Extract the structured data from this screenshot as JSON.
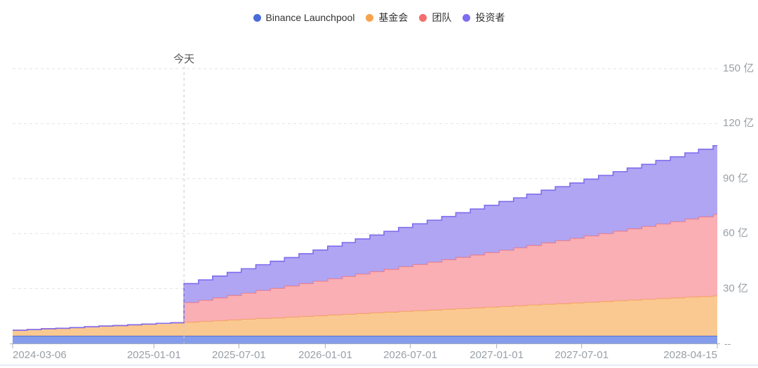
{
  "legend": {
    "items": [
      {
        "label": "Binance Launchpool",
        "color": "#4a6cd9"
      },
      {
        "label": "基金会",
        "color": "#f7a34e"
      },
      {
        "label": "团队",
        "color": "#f56d6d"
      },
      {
        "label": "投资者",
        "color": "#7d6ef0"
      }
    ]
  },
  "today": {
    "label": "今天",
    "date": "2025-03-06"
  },
  "y_axis": {
    "unit": "亿",
    "ticks": [
      30,
      60,
      90,
      120,
      150
    ],
    "tick_labels": [
      "30 亿",
      "60 亿",
      "90 亿",
      "120 亿",
      "150 亿"
    ],
    "zero_marker": "--",
    "max": 150
  },
  "x_axis": {
    "tick_labels": [
      "2024-03-06",
      "2025-01-01",
      "2025-07-01",
      "2026-01-01",
      "2026-07-01",
      "2027-01-01",
      "2027-07-01",
      "2028-04-15"
    ]
  },
  "chart_data": {
    "type": "area",
    "stacked": true,
    "step": "after",
    "title": "",
    "xlabel": "",
    "ylabel": "亿",
    "ylim": [
      0,
      150
    ],
    "x_range": [
      "2024-03-06",
      "2028-04-15"
    ],
    "grid": "dashed-horizontal",
    "legend_position": "top-center",
    "x": [
      "2024-03-06",
      "2024-04-06",
      "2024-05-06",
      "2024-06-06",
      "2024-07-06",
      "2024-08-06",
      "2024-09-06",
      "2024-10-06",
      "2024-11-06",
      "2024-12-06",
      "2025-01-06",
      "2025-02-06",
      "2025-03-06",
      "2025-04-06",
      "2025-05-06",
      "2025-06-06",
      "2025-07-06",
      "2025-08-06",
      "2025-09-06",
      "2025-10-06",
      "2025-11-06",
      "2025-12-06",
      "2026-01-06",
      "2026-02-06",
      "2026-03-06",
      "2026-04-06",
      "2026-05-06",
      "2026-06-06",
      "2026-07-06",
      "2026-08-06",
      "2026-09-06",
      "2026-10-06",
      "2026-11-06",
      "2026-12-06",
      "2027-01-06",
      "2027-02-06",
      "2027-03-06",
      "2027-04-06",
      "2027-05-06",
      "2027-06-06",
      "2027-07-06",
      "2027-08-06",
      "2027-09-06",
      "2027-10-06",
      "2027-11-06",
      "2027-12-06",
      "2028-01-06",
      "2028-02-06",
      "2028-03-06",
      "2028-04-06",
      "2028-04-15"
    ],
    "series": [
      {
        "name": "Binance Launchpool",
        "fill": "#7b93ea",
        "stroke": "#4f6ecf",
        "values": [
          4.2,
          4.2,
          4.2,
          4.2,
          4.2,
          4.2,
          4.2,
          4.2,
          4.2,
          4.2,
          4.2,
          4.2,
          4.2,
          4.2,
          4.2,
          4.2,
          4.2,
          4.2,
          4.2,
          4.2,
          4.2,
          4.2,
          4.2,
          4.2,
          4.2,
          4.2,
          4.2,
          4.2,
          4.2,
          4.2,
          4.2,
          4.2,
          4.2,
          4.2,
          4.2,
          4.2,
          4.2,
          4.2,
          4.2,
          4.2,
          4.2,
          4.2,
          4.2,
          4.2,
          4.2,
          4.2,
          4.2,
          4.2,
          4.2,
          4.2,
          4.2
        ]
      },
      {
        "name": "基金会",
        "fill": "#fac488",
        "stroke": "#f3a45c",
        "values": [
          3.0,
          3.4,
          3.8,
          4.1,
          4.5,
          4.9,
          5.3,
          5.6,
          6.0,
          6.4,
          6.8,
          7.1,
          7.5,
          7.9,
          8.3,
          8.7,
          9.1,
          9.5,
          9.8,
          10.2,
          10.6,
          11.0,
          11.4,
          11.8,
          12.2,
          12.6,
          13.0,
          13.4,
          13.7,
          14.1,
          14.5,
          14.9,
          15.3,
          15.7,
          16.1,
          16.5,
          16.9,
          17.3,
          17.6,
          18.0,
          18.4,
          18.8,
          19.2,
          19.6,
          20.0,
          20.4,
          20.8,
          21.2,
          21.5,
          21.9,
          21.9
        ]
      },
      {
        "name": "团队",
        "fill": "#f8a8ac",
        "stroke": "#f1797f",
        "values": [
          0,
          0,
          0,
          0,
          0,
          0,
          0,
          0,
          0,
          0,
          0,
          0,
          10.7,
          11.6,
          12.5,
          13.4,
          14.3,
          15.3,
          16.2,
          17.1,
          18.0,
          18.9,
          19.8,
          20.7,
          21.6,
          22.5,
          23.4,
          24.4,
          25.3,
          26.2,
          27.1,
          28.0,
          28.9,
          29.8,
          30.7,
          31.6,
          32.5,
          33.5,
          34.4,
          35.3,
          36.2,
          37.1,
          38.0,
          38.9,
          39.8,
          40.7,
          41.6,
          42.6,
          43.5,
          44.4,
          44.4
        ]
      },
      {
        "name": "投资者",
        "fill": "#a99df1",
        "stroke": "#7e6cee",
        "values": [
          0,
          0,
          0,
          0,
          0,
          0,
          0,
          0,
          0,
          0,
          0,
          0,
          10.3,
          11.0,
          11.8,
          12.5,
          13.2,
          14.0,
          14.7,
          15.4,
          16.2,
          16.9,
          17.7,
          18.4,
          19.1,
          19.9,
          20.6,
          21.3,
          22.1,
          22.8,
          23.5,
          24.3,
          25.0,
          25.7,
          26.5,
          27.2,
          27.9,
          28.7,
          29.4,
          30.1,
          30.9,
          31.6,
          32.4,
          33.1,
          33.8,
          34.6,
          35.3,
          36.0,
          36.8,
          37.5,
          37.5
        ]
      }
    ]
  }
}
